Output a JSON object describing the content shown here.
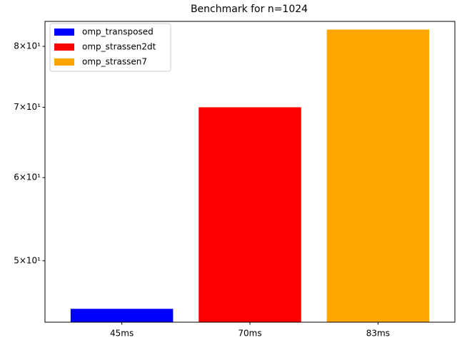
{
  "chart_data": {
    "type": "bar",
    "title": "Benchmark for n=1024",
    "categories": [
      "45ms",
      "70ms",
      "83ms"
    ],
    "series": [
      {
        "name": "omp_transposed",
        "color": "#0000ff",
        "values": [
          45,
          null,
          null
        ]
      },
      {
        "name": "omp_strassen2dt",
        "color": "#ff0000",
        "values": [
          null,
          70,
          null
        ]
      },
      {
        "name": "omp_strassen7",
        "color": "#ffa500",
        "values": [
          null,
          null,
          83
        ]
      }
    ],
    "ylim": [
      43.7,
      84.5
    ],
    "log_scale": true,
    "yticks": [
      {
        "value": 50,
        "label": "5×10¹"
      },
      {
        "value": 60,
        "label": "6×10¹"
      },
      {
        "value": 70,
        "label": "7×10¹"
      },
      {
        "value": 80,
        "label": "8×10¹"
      }
    ],
    "legend": "upper left"
  }
}
